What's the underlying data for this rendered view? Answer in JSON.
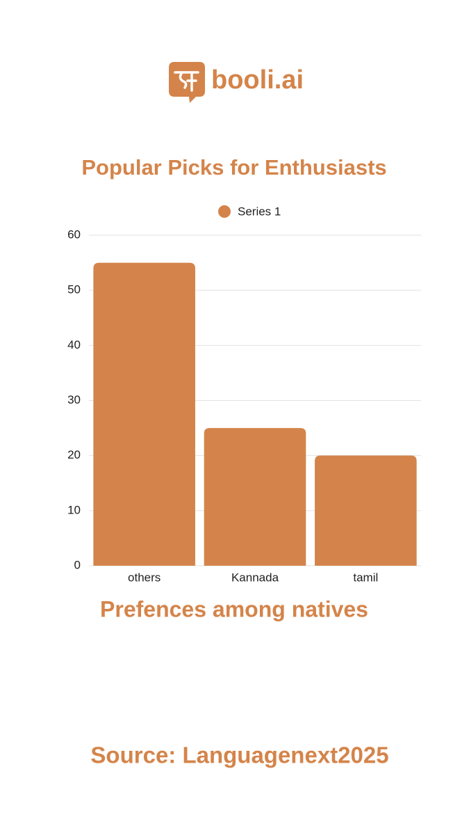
{
  "logo": {
    "text": "booli.ai"
  },
  "chart_data": {
    "type": "bar",
    "title": "Popular Picks for Enthusiasts",
    "x_label": "Prefences among natives",
    "categories": [
      "others",
      "Kannada",
      "tamil"
    ],
    "series": [
      {
        "name": "Series 1",
        "color": "#d4844a",
        "values": [
          55,
          25,
          20
        ]
      }
    ],
    "ylim": [
      0,
      60
    ],
    "yticks": [
      0,
      10,
      20,
      30,
      40,
      50,
      60
    ],
    "grid": true,
    "legend": "top"
  },
  "source": "Source: Languagenext2025"
}
